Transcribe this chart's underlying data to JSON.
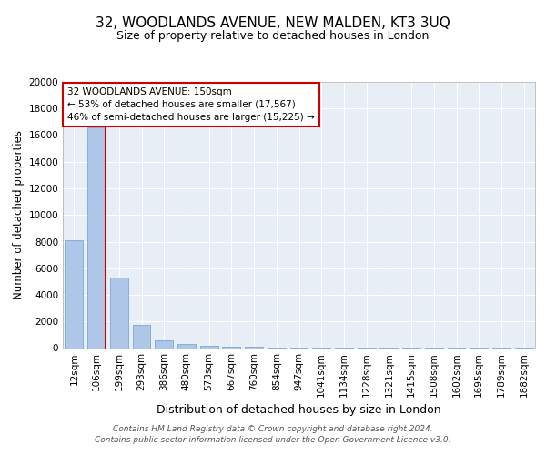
{
  "title1": "32, WOODLANDS AVENUE, NEW MALDEN, KT3 3UQ",
  "title2": "Size of property relative to detached houses in London",
  "xlabel": "Distribution of detached houses by size in London",
  "ylabel": "Number of detached properties",
  "categories": [
    "12sqm",
    "106sqm",
    "199sqm",
    "293sqm",
    "386sqm",
    "480sqm",
    "573sqm",
    "667sqm",
    "760sqm",
    "854sqm",
    "947sqm",
    "1041sqm",
    "1134sqm",
    "1228sqm",
    "1321sqm",
    "1415sqm",
    "1508sqm",
    "1602sqm",
    "1695sqm",
    "1789sqm",
    "1882sqm"
  ],
  "values": [
    8100,
    16600,
    5300,
    1750,
    600,
    310,
    175,
    110,
    80,
    50,
    30,
    30,
    20,
    15,
    15,
    10,
    10,
    8,
    5,
    5,
    3
  ],
  "bar_color": "#aec6e8",
  "bar_edgecolor": "#7aaad0",
  "vline_x": 1.42,
  "vline_color": "#cc0000",
  "annotation_text": "32 WOODLANDS AVENUE: 150sqm\n← 53% of detached houses are smaller (17,567)\n46% of semi-detached houses are larger (15,225) →",
  "annotation_box_edgecolor": "#cc0000",
  "annotation_box_facecolor": "#ffffff",
  "ylim": [
    0,
    20000
  ],
  "yticks": [
    0,
    2000,
    4000,
    6000,
    8000,
    10000,
    12000,
    14000,
    16000,
    18000,
    20000
  ],
  "footer": "Contains HM Land Registry data © Crown copyright and database right 2024.\nContains public sector information licensed under the Open Government Licence v3.0.",
  "fig_facecolor": "#ffffff",
  "bg_color": "#e8eef5",
  "grid_color": "#ffffff",
  "title1_fontsize": 11,
  "title2_fontsize": 9,
  "xlabel_fontsize": 9,
  "ylabel_fontsize": 8.5,
  "tick_fontsize": 7.5,
  "annotation_fontsize": 7.5,
  "footer_fontsize": 6.5
}
